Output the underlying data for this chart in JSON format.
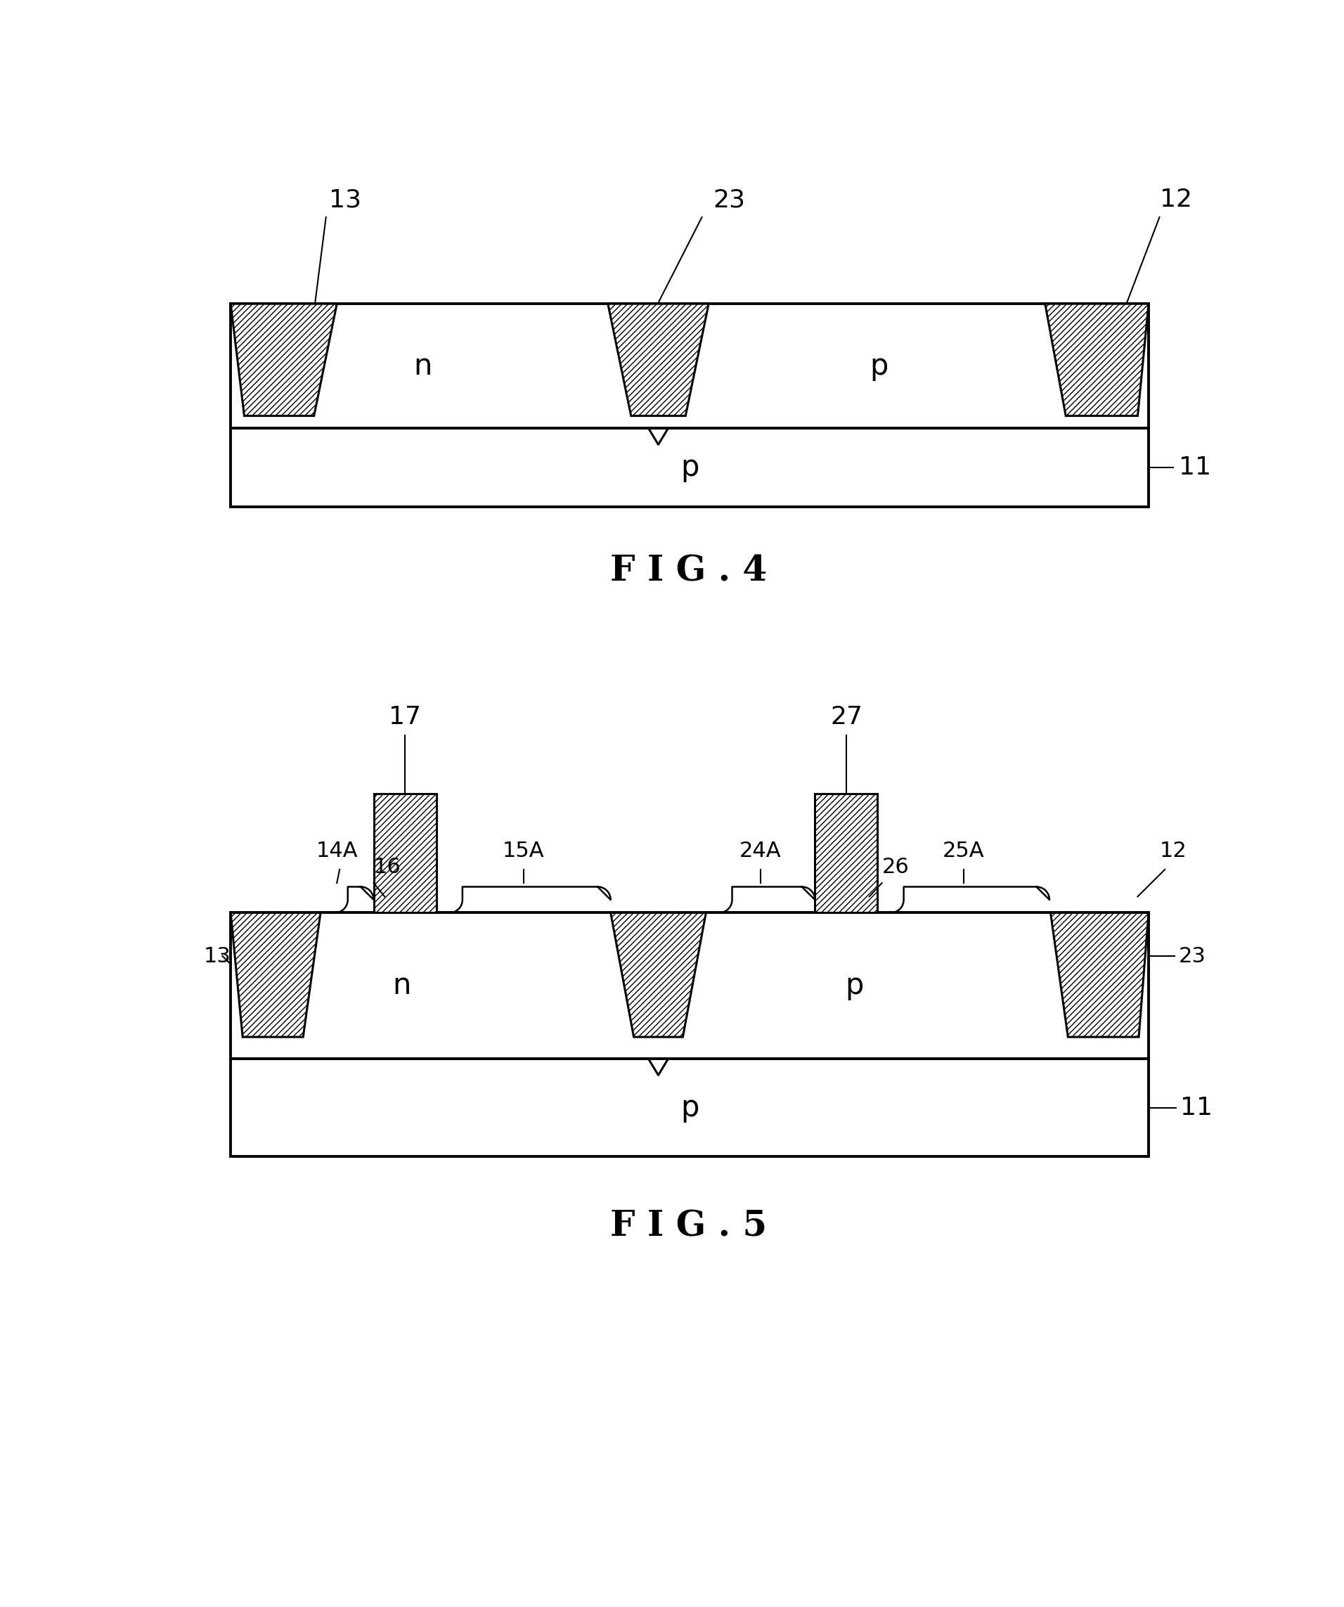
{
  "fig_width": 19.12,
  "fig_height": 22.86,
  "bg_color": "#ffffff",
  "fig4": {
    "title": "F I G . 4",
    "label_11": "11",
    "label_12": "12",
    "label_13": "13",
    "label_23": "23",
    "sub_label": "p",
    "epi_n_label": "n",
    "epi_p_label": "p"
  },
  "fig5": {
    "title": "F I G . 5",
    "label_11": "11",
    "label_12": "12",
    "label_13": "13",
    "label_14A": "14A",
    "label_15A": "15A",
    "label_16": "16",
    "label_17": "17",
    "label_23": "23",
    "label_24A": "24A",
    "label_25A": "25A",
    "label_26": "26",
    "label_27": "27",
    "sub_label": "p",
    "epi_n_label": "n",
    "epi_p_label": "p"
  }
}
